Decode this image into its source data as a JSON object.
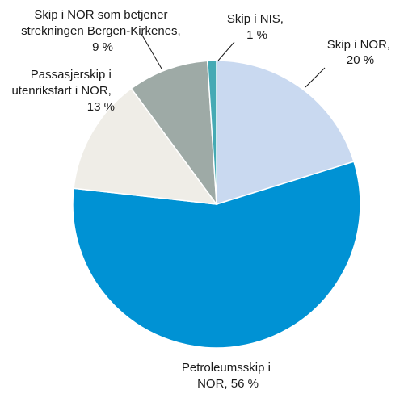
{
  "chart_data": {
    "type": "pie",
    "slices": [
      {
        "id": "skip-nor",
        "label_lines": [
          "Skip i NOR,",
          "20 %"
        ],
        "value": 20,
        "color": "#c9d9f0"
      },
      {
        "id": "petroleum",
        "label_lines": [
          "Petroleumsskip i",
          "NOR, 56 %"
        ],
        "value": 56,
        "color": "#0092d4"
      },
      {
        "id": "passenger",
        "label_lines": [
          "Passasjerskip i",
          "utenriksfart i NOR,",
          "13 %"
        ],
        "value": 13,
        "color": "#efede7"
      },
      {
        "id": "bergen-kirkenes",
        "label_lines": [
          "Skip i NOR som betjener",
          "strekningen Bergen-Kirkenes,",
          "9 %"
        ],
        "value": 9,
        "color": "#9eaaa6"
      },
      {
        "id": "skip-nis",
        "label_lines": [
          "Skip i NIS,",
          "1 %"
        ],
        "value": 1,
        "color": "#45aab4"
      }
    ]
  }
}
